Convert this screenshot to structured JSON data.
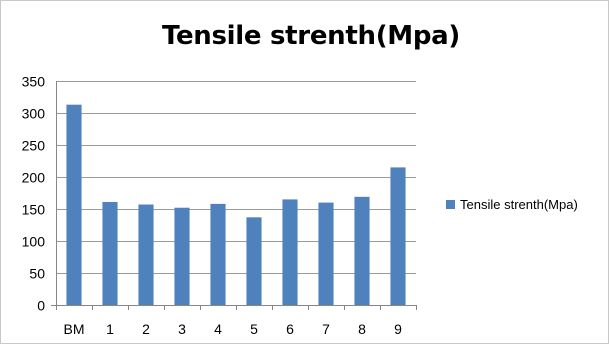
{
  "chart_data": {
    "type": "bar",
    "title": "Tensile strenth(Mpa)",
    "categories": [
      "BM",
      "1",
      "2",
      "3",
      "4",
      "5",
      "6",
      "7",
      "8",
      "9"
    ],
    "series": [
      {
        "name": "Tensile strenth(Mpa)",
        "values": [
          313,
          161,
          157,
          152,
          158,
          137,
          165,
          160,
          169,
          215
        ],
        "color": "#4f81bd"
      }
    ],
    "ylim": [
      0,
      350
    ],
    "yticks": [
      0,
      50,
      100,
      150,
      200,
      250,
      300,
      350
    ],
    "grid": true,
    "legend_position": "right"
  }
}
